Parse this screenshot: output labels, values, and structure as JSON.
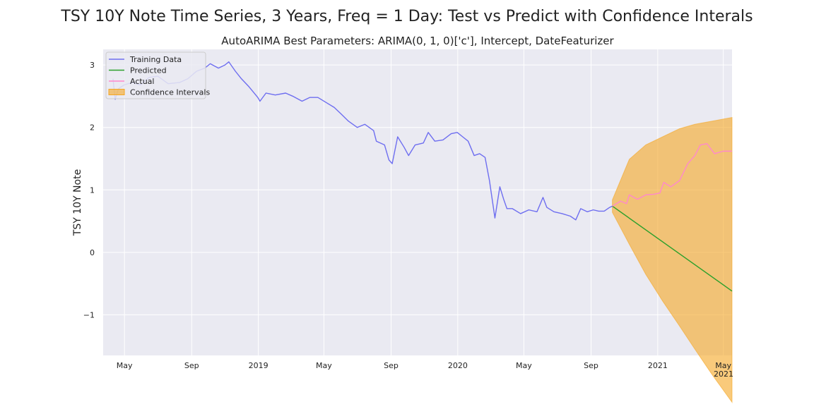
{
  "figure": {
    "suptitle": "TSY 10Y Note Time Series, 3 Years, Freq = 1 Day: Test vs Predict with Confidence Interals",
    "colors": {
      "background": "#ffffff",
      "plot_bg": "#eaeaf2",
      "grid": "#ffffff"
    }
  },
  "chart_data": {
    "type": "line",
    "title": "AutoARIMA Best Parameters: ARIMA(0, 1, 0)['c'], Intercept, DateFeaturizer",
    "xlabel": "",
    "ylabel": "TSY 10Y Note",
    "x_axis": {
      "type": "date",
      "range": [
        "2018-03-23",
        "2021-05-17"
      ],
      "ticks": [
        {
          "date": "2018-05-01",
          "label": "May"
        },
        {
          "date": "2018-09-01",
          "label": "Sep"
        },
        {
          "date": "2019-01-01",
          "label": "2019"
        },
        {
          "date": "2019-05-01",
          "label": "May"
        },
        {
          "date": "2019-09-01",
          "label": "Sep"
        },
        {
          "date": "2020-01-01",
          "label": "2020"
        },
        {
          "date": "2020-05-01",
          "label": "May"
        },
        {
          "date": "2020-09-01",
          "label": "Sep"
        },
        {
          "date": "2021-01-01",
          "label": "2021"
        },
        {
          "date": "2021-05-01",
          "label": "May"
        }
      ],
      "offset_label": "2021"
    },
    "y_axis": {
      "range": [
        -1.65,
        3.25
      ],
      "ticks": [
        {
          "value": -1,
          "label": "−1"
        },
        {
          "value": 0,
          "label": "0"
        },
        {
          "value": 1,
          "label": "1"
        },
        {
          "value": 2,
          "label": "2"
        },
        {
          "value": 3,
          "label": "3"
        }
      ]
    },
    "grid": true,
    "legend": {
      "position": "upper-left"
    },
    "series": [
      {
        "name": "Training Data",
        "color": "#6e6ef0",
        "points": [
          [
            "2018-04-10",
            2.78
          ],
          [
            "2018-04-14",
            2.45
          ],
          [
            "2018-04-20",
            2.62
          ],
          [
            "2018-04-30",
            2.68
          ],
          [
            "2018-05-15",
            2.72
          ],
          [
            "2018-05-30",
            2.68
          ],
          [
            "2018-06-15",
            2.8
          ],
          [
            "2018-07-01",
            2.82
          ],
          [
            "2018-07-20",
            2.7
          ],
          [
            "2018-08-10",
            2.72
          ],
          [
            "2018-08-25",
            2.78
          ],
          [
            "2018-09-10",
            2.9
          ],
          [
            "2018-09-25",
            2.95
          ],
          [
            "2018-10-05",
            3.02
          ],
          [
            "2018-10-20",
            2.95
          ],
          [
            "2018-11-01",
            3.0
          ],
          [
            "2018-11-08",
            3.05
          ],
          [
            "2018-11-20",
            2.9
          ],
          [
            "2018-12-01",
            2.78
          ],
          [
            "2018-12-15",
            2.65
          ],
          [
            "2018-12-31",
            2.48
          ],
          [
            "2019-01-04",
            2.42
          ],
          [
            "2019-01-15",
            2.55
          ],
          [
            "2019-02-01",
            2.52
          ],
          [
            "2019-02-20",
            2.55
          ],
          [
            "2019-03-05",
            2.5
          ],
          [
            "2019-03-22",
            2.42
          ],
          [
            "2019-04-05",
            2.48
          ],
          [
            "2019-04-20",
            2.48
          ],
          [
            "2019-05-05",
            2.4
          ],
          [
            "2019-05-20",
            2.32
          ],
          [
            "2019-06-01",
            2.22
          ],
          [
            "2019-06-15",
            2.1
          ],
          [
            "2019-07-01",
            2.0
          ],
          [
            "2019-07-15",
            2.05
          ],
          [
            "2019-07-31",
            1.95
          ],
          [
            "2019-08-05",
            1.78
          ],
          [
            "2019-08-20",
            1.72
          ],
          [
            "2019-08-28",
            1.48
          ],
          [
            "2019-09-03",
            1.42
          ],
          [
            "2019-09-13",
            1.85
          ],
          [
            "2019-09-25",
            1.68
          ],
          [
            "2019-10-03",
            1.55
          ],
          [
            "2019-10-15",
            1.72
          ],
          [
            "2019-10-30",
            1.75
          ],
          [
            "2019-11-08",
            1.92
          ],
          [
            "2019-11-20",
            1.78
          ],
          [
            "2019-12-05",
            1.8
          ],
          [
            "2019-12-20",
            1.9
          ],
          [
            "2019-12-31",
            1.92
          ],
          [
            "2020-01-10",
            1.85
          ],
          [
            "2020-01-20",
            1.78
          ],
          [
            "2020-01-31",
            1.55
          ],
          [
            "2020-02-10",
            1.58
          ],
          [
            "2020-02-20",
            1.52
          ],
          [
            "2020-02-28",
            1.15
          ],
          [
            "2020-03-09",
            0.55
          ],
          [
            "2020-03-18",
            1.05
          ],
          [
            "2020-03-25",
            0.85
          ],
          [
            "2020-03-31",
            0.7
          ],
          [
            "2020-04-10",
            0.7
          ],
          [
            "2020-04-25",
            0.62
          ],
          [
            "2020-05-10",
            0.68
          ],
          [
            "2020-05-25",
            0.65
          ],
          [
            "2020-06-05",
            0.88
          ],
          [
            "2020-06-12",
            0.72
          ],
          [
            "2020-06-25",
            0.65
          ],
          [
            "2020-07-10",
            0.62
          ],
          [
            "2020-07-25",
            0.58
          ],
          [
            "2020-08-04",
            0.52
          ],
          [
            "2020-08-13",
            0.7
          ],
          [
            "2020-08-25",
            0.65
          ],
          [
            "2020-09-05",
            0.68
          ],
          [
            "2020-09-15",
            0.66
          ],
          [
            "2020-09-25",
            0.66
          ],
          [
            "2020-10-05",
            0.72
          ],
          [
            "2020-10-10",
            0.74
          ]
        ]
      },
      {
        "name": "Predicted",
        "color": "#2ca02c",
        "points": [
          [
            "2020-10-10",
            0.74
          ],
          [
            "2021-05-17",
            -0.62
          ]
        ]
      },
      {
        "name": "Actual",
        "color": "#ff88cc",
        "points": [
          [
            "2020-10-10",
            0.74
          ],
          [
            "2020-10-25",
            0.82
          ],
          [
            "2020-11-05",
            0.78
          ],
          [
            "2020-11-10",
            0.92
          ],
          [
            "2020-11-25",
            0.85
          ],
          [
            "2020-12-10",
            0.92
          ],
          [
            "2020-12-25",
            0.93
          ],
          [
            "2021-01-05",
            0.95
          ],
          [
            "2021-01-12",
            1.12
          ],
          [
            "2021-01-25",
            1.05
          ],
          [
            "2021-02-10",
            1.15
          ],
          [
            "2021-02-25",
            1.42
          ],
          [
            "2021-03-10",
            1.55
          ],
          [
            "2021-03-20",
            1.72
          ],
          [
            "2021-04-01",
            1.74
          ],
          [
            "2021-04-15",
            1.58
          ],
          [
            "2021-05-01",
            1.62
          ],
          [
            "2021-05-17",
            1.62
          ]
        ]
      },
      {
        "name": "Confidence Intervals",
        "type": "band",
        "color": "#f5a623",
        "points": [
          [
            "2020-10-10",
            0.84,
            0.64
          ],
          [
            "2020-11-10",
            1.49,
            0.13
          ],
          [
            "2020-12-10",
            1.72,
            -0.35
          ],
          [
            "2021-01-10",
            1.85,
            -0.78
          ],
          [
            "2021-02-10",
            1.98,
            -1.18
          ],
          [
            "2021-03-10",
            2.05,
            -1.55
          ],
          [
            "2021-04-10",
            2.1,
            -1.95
          ],
          [
            "2021-05-17",
            2.16,
            -2.4
          ]
        ]
      }
    ]
  }
}
